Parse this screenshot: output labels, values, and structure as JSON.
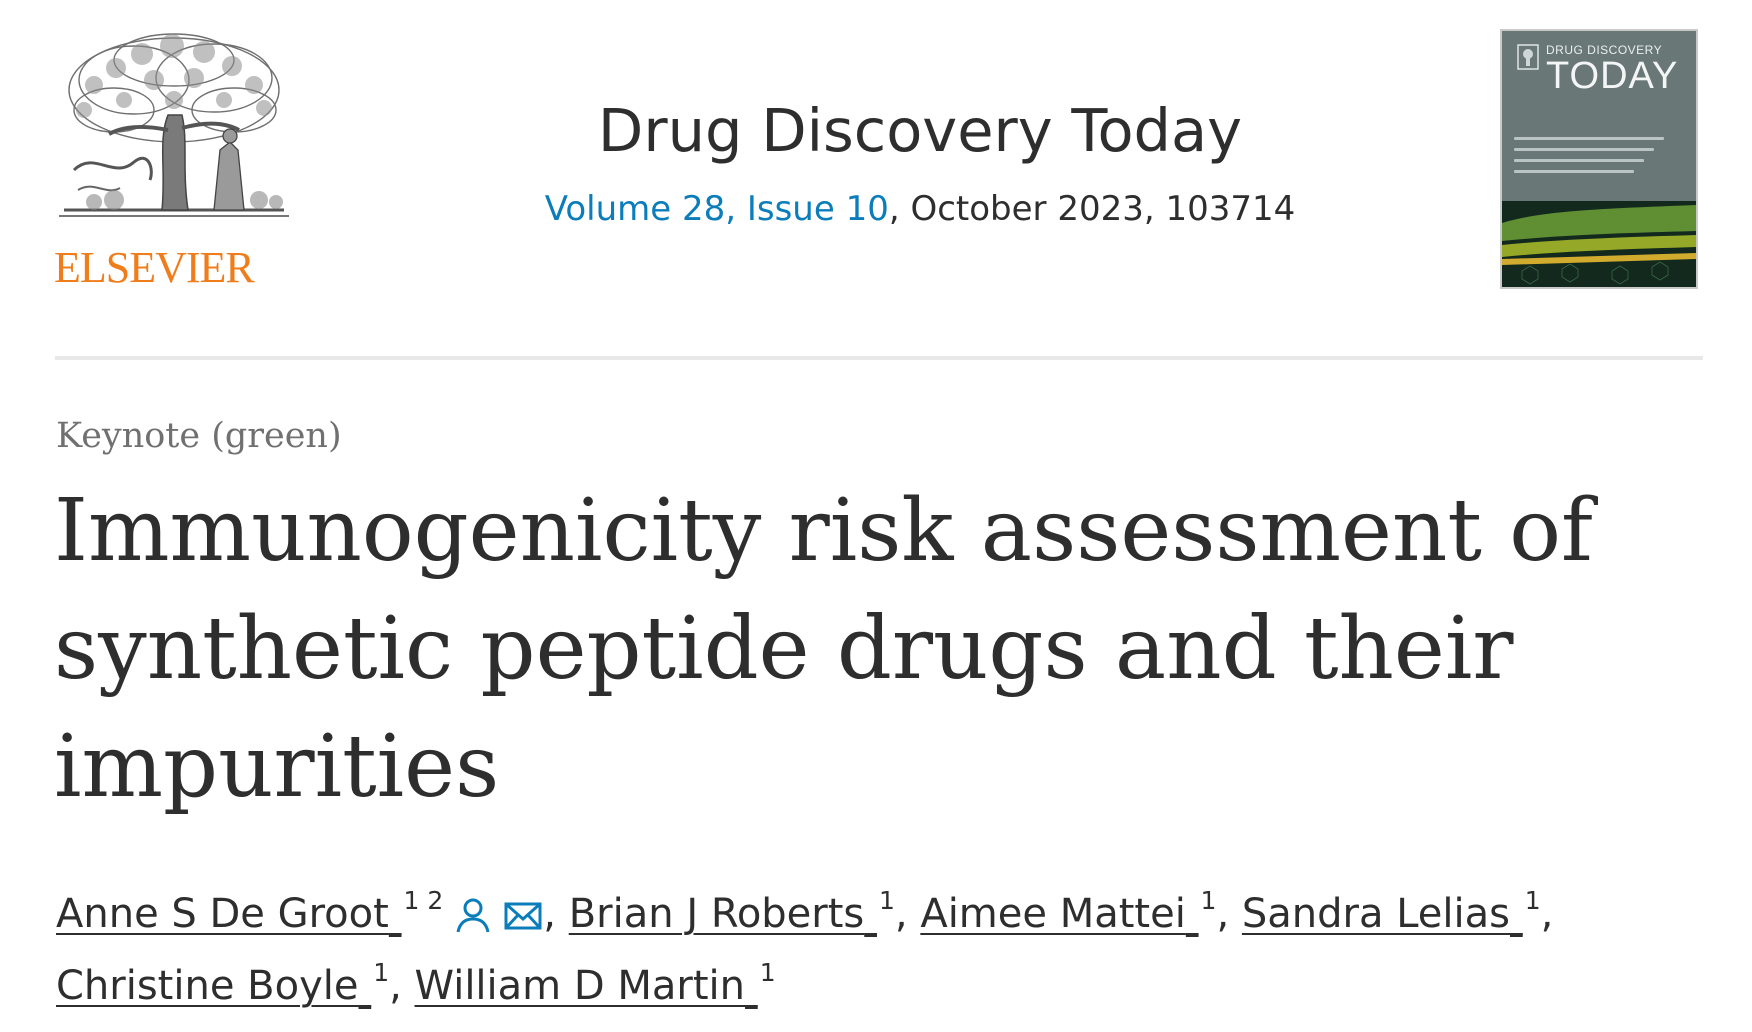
{
  "publisher": {
    "name": "ELSEVIER"
  },
  "journal": {
    "title": "Drug Discovery Today",
    "volume_link": "Volume 28, Issue 10",
    "issue_meta": ", October 2023, 103714"
  },
  "cover": {
    "title_small": "DRUG DISCOVERY",
    "title_big": "TODAY"
  },
  "article": {
    "type": "Keynote (green)",
    "title": "Immunogenicity risk assessment of synthetic peptide drugs and their impurities"
  },
  "authors": [
    {
      "name": "Anne S De Groot",
      "affiliations": "1 2",
      "has_person_icon": true,
      "has_email_icon": true
    },
    {
      "name": "Brian J Roberts",
      "affiliations": "1"
    },
    {
      "name": "Aimee Mattei",
      "affiliations": "1"
    },
    {
      "name": "Sandra Lelias",
      "affiliations": "1"
    },
    {
      "name": "Christine Boyle",
      "affiliations": "1"
    },
    {
      "name": "William D Martin",
      "affiliations": "1"
    }
  ],
  "colors": {
    "link": "#0c7dbb",
    "publisher_orange": "#f07d1c",
    "text": "#2e2e2e",
    "muted": "#707070"
  },
  "icons": {
    "person": "person-icon",
    "email": "envelope-icon"
  }
}
